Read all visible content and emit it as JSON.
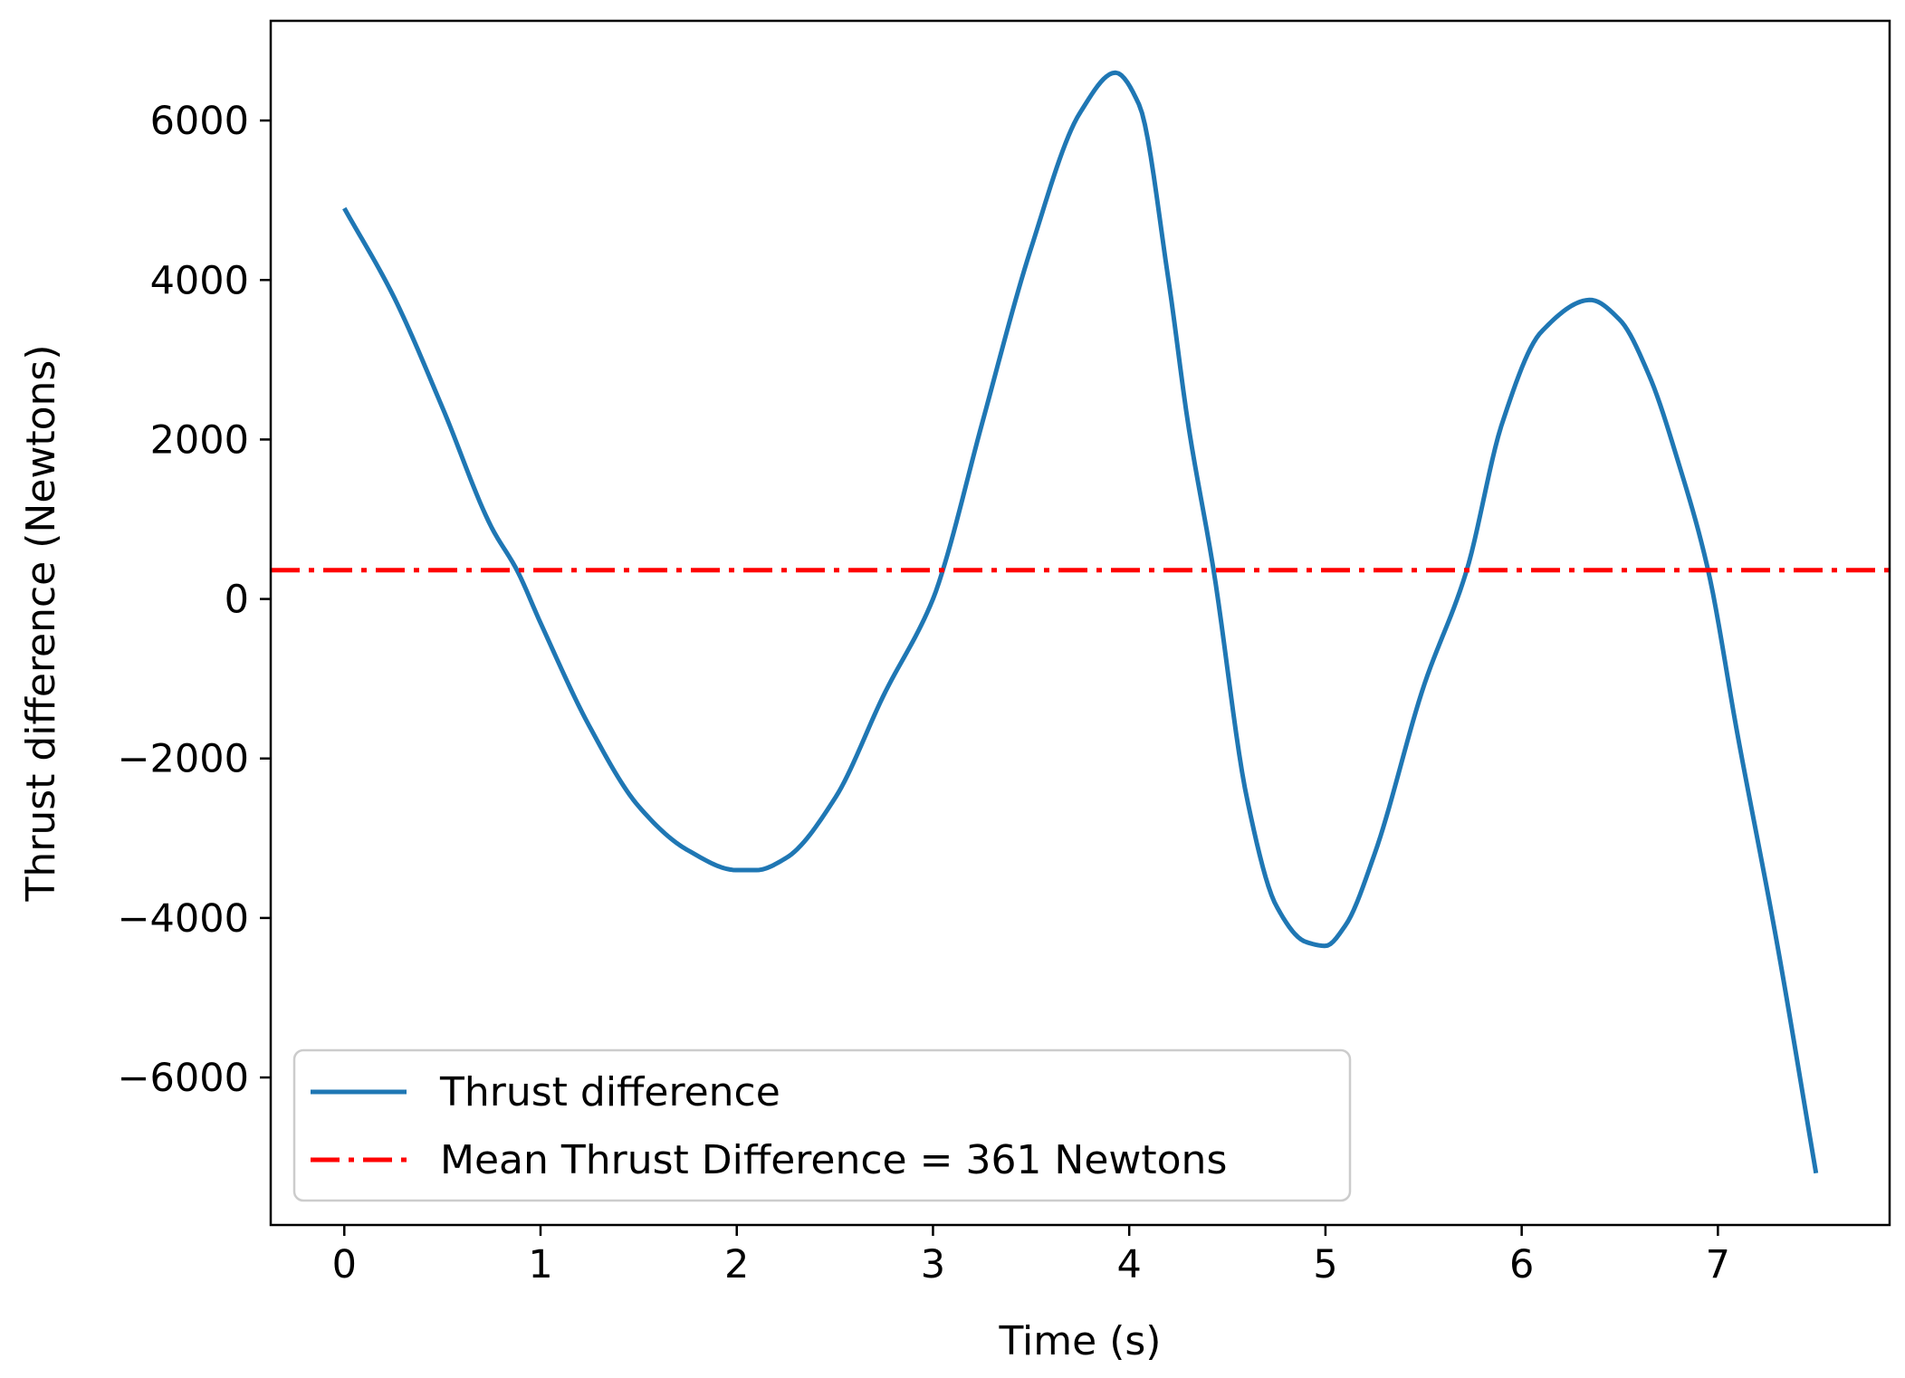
{
  "chart_data": {
    "type": "line",
    "title": "",
    "xlabel": "Time (s)",
    "ylabel": "Thrust difference (Newtons)",
    "xlim": [
      -0.375,
      7.875
    ],
    "ylim": [
      -7850,
      7250
    ],
    "xticks": [
      0,
      1,
      2,
      3,
      4,
      5,
      6,
      7
    ],
    "xtick_labels": [
      "0",
      "1",
      "2",
      "3",
      "4",
      "5",
      "6",
      "7"
    ],
    "yticks": [
      -6000,
      -4000,
      -2000,
      0,
      2000,
      4000,
      6000
    ],
    "ytick_labels": [
      "−6000",
      "−4000",
      "−2000",
      "0",
      "2000",
      "4000",
      "6000"
    ],
    "grid": false,
    "legend_position": "lower-left",
    "series": [
      {
        "name": "Thrust difference",
        "kind": "line",
        "color": "#1f77b4",
        "x": [
          0,
          0.25,
          0.5,
          0.75,
          0.88,
          1.0,
          1.25,
          1.5,
          1.75,
          2.0,
          2.1,
          2.25,
          2.5,
          2.75,
          3.0,
          3.05,
          3.25,
          3.5,
          3.75,
          3.93,
          4.05,
          4.2,
          4.3,
          4.43,
          4.6,
          4.75,
          4.9,
          5.0,
          5.1,
          5.25,
          5.5,
          5.72,
          5.9,
          6.1,
          6.35,
          6.5,
          6.65,
          6.8,
          6.95,
          7.1,
          7.3,
          7.5
        ],
        "y": [
          4900,
          3800,
          2400,
          900,
          361,
          -300,
          -1600,
          -2600,
          -3150,
          -3400,
          -3400,
          -3250,
          -2500,
          -1200,
          0,
          361,
          2200,
          4400,
          6100,
          6600,
          6200,
          4000,
          2200,
          361,
          -2500,
          -3850,
          -4300,
          -4350,
          -4100,
          -3200,
          -1100,
          361,
          2200,
          3350,
          3750,
          3500,
          2800,
          1700,
          361,
          -1700,
          -4300,
          -7200
        ]
      },
      {
        "name": "Mean Thrust Difference = 361 Newtons",
        "kind": "hline",
        "color": "#ff0000",
        "y": 361
      }
    ]
  }
}
